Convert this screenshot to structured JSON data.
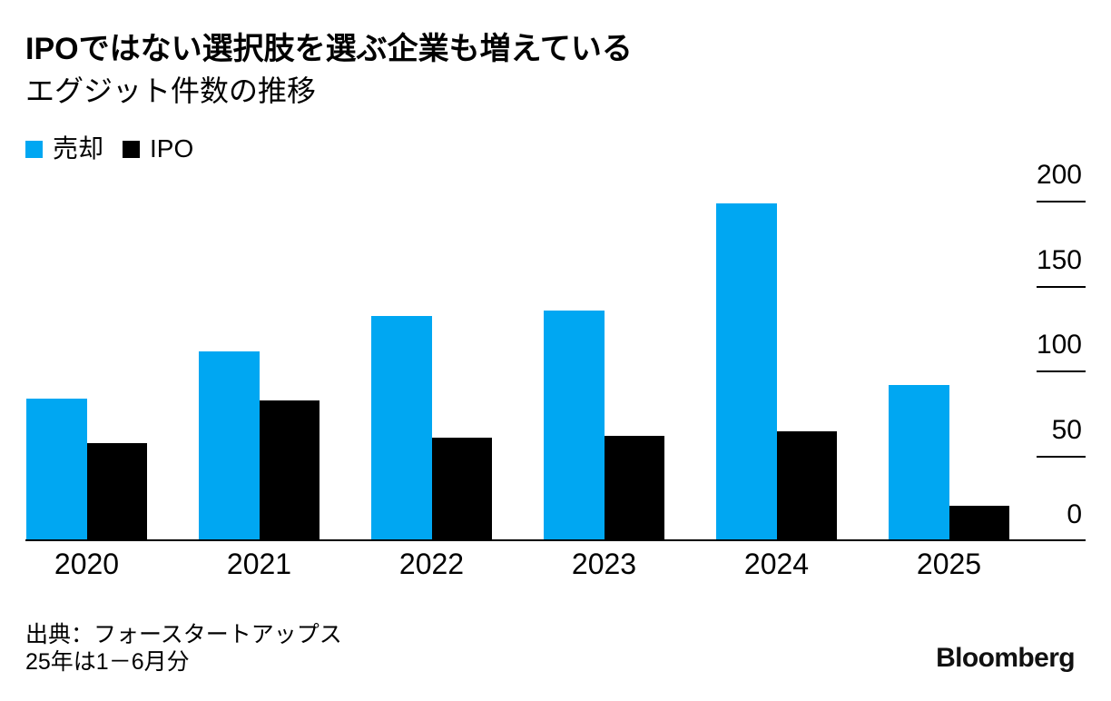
{
  "chart_data": {
    "type": "bar",
    "title": "IPOではない選択肢を選ぶ企業も増えている",
    "subtitle": "エグジット件数の推移",
    "categories": [
      "2020",
      "2021",
      "2022",
      "2023",
      "2024",
      "2025"
    ],
    "series": [
      {
        "name": "売却",
        "color": "#00a7f2",
        "values": [
          84,
          112,
          133,
          136,
          199,
          92
        ]
      },
      {
        "name": "IPO",
        "color": "#000000",
        "values": [
          58,
          83,
          61,
          62,
          65,
          21
        ]
      }
    ],
    "ylim": [
      0,
      200
    ],
    "yticks": [
      0,
      50,
      100,
      150,
      200
    ],
    "y_axis_side": "right",
    "legend_position": "top-left",
    "grid": false,
    "background": "#ffffff"
  },
  "footer": {
    "source_line1": "出典：フォースタートアップス",
    "source_line2": "25年は1－6月分",
    "brand": "Bloomberg"
  }
}
